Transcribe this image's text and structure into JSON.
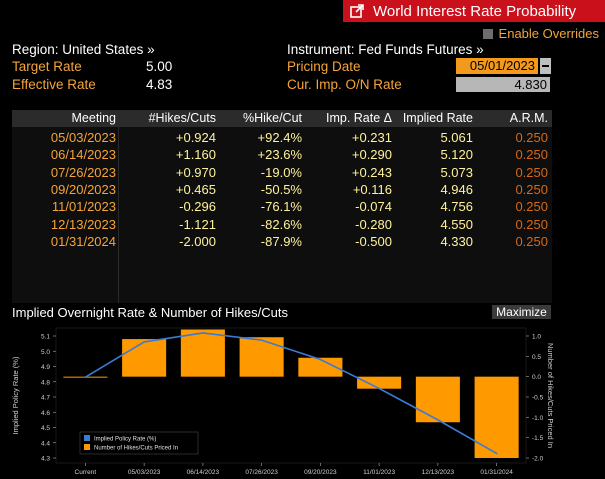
{
  "window": {
    "title": "World Interest Rate Probability"
  },
  "header": {
    "enable_overrides": "Enable Overrides",
    "region_label": "Region: United States »",
    "instrument_label": "Instrument: Fed Funds Futures »",
    "target_rate_label": "Target Rate",
    "target_rate_value": "5.00",
    "effective_rate_label": "Effective Rate",
    "effective_rate_value": "4.83",
    "pricing_date_label": "Pricing Date",
    "pricing_date_value": "05/01/2023",
    "cur_imp_label": "Cur. Imp. O/N Rate",
    "cur_imp_value": "4.830"
  },
  "table": {
    "columns": [
      "Meeting",
      "#Hikes/Cuts",
      "%Hike/Cut",
      "Imp. Rate Δ",
      "Implied Rate",
      "A.R.M."
    ],
    "rows": [
      [
        "05/03/2023",
        "+0.924",
        "+92.4%",
        "+0.231",
        "5.061",
        "0.250"
      ],
      [
        "06/14/2023",
        "+1.160",
        "+23.6%",
        "+0.290",
        "5.120",
        "0.250"
      ],
      [
        "07/26/2023",
        "+0.970",
        "-19.0%",
        "+0.243",
        "5.073",
        "0.250"
      ],
      [
        "09/20/2023",
        "+0.465",
        "-50.5%",
        "+0.116",
        "4.946",
        "0.250"
      ],
      [
        "11/01/2023",
        "-0.296",
        "-76.1%",
        "-0.074",
        "4.756",
        "0.250"
      ],
      [
        "12/13/2023",
        "-1.121",
        "-82.6%",
        "-0.280",
        "4.550",
        "0.250"
      ],
      [
        "01/31/2024",
        "-2.000",
        "-87.9%",
        "-0.500",
        "4.330",
        "0.250"
      ]
    ]
  },
  "chart_section": {
    "title": "Implied Overnight Rate & Number of Hikes/Cuts",
    "maximize": "Maximize"
  },
  "chart_data": {
    "type": "bar",
    "title": "Implied Overnight Rate & Number of Hikes/Cuts",
    "categories": [
      "Current",
      "05/03/2023",
      "06/14/2023",
      "07/26/2023",
      "09/20/2023",
      "11/01/2023",
      "12/13/2023",
      "01/31/2024"
    ],
    "series": [
      {
        "name": "Implied Policy Rate (%)",
        "type": "line",
        "axis": "left",
        "color": "#3a7bd5",
        "values": [
          4.83,
          5.061,
          5.12,
          5.073,
          4.946,
          4.756,
          4.55,
          4.33
        ]
      },
      {
        "name": "Number of Hikes/Cuts Priced In",
        "type": "bar",
        "axis": "right",
        "color": "#ff9900",
        "values": [
          0.0,
          0.924,
          1.16,
          0.97,
          0.465,
          -0.296,
          -1.121,
          -2.0
        ]
      }
    ],
    "ylabel": "Implied Policy Rate (%)",
    "y2label": "Number of Hikes/Cuts Priced In",
    "ylim": [
      4.3,
      5.1
    ],
    "y2lim": [
      -2.0,
      1.0
    ],
    "yticks": [
      "5.1",
      "5.0",
      "4.9",
      "4.8",
      "4.7",
      "4.6",
      "4.5",
      "4.4",
      "4.3"
    ],
    "y2ticks": [
      "1.0",
      "0.5",
      "0.0",
      "-0.5",
      "-1.0",
      "-1.5",
      "-2.0"
    ],
    "legend": "bottom-left",
    "grid": false
  }
}
